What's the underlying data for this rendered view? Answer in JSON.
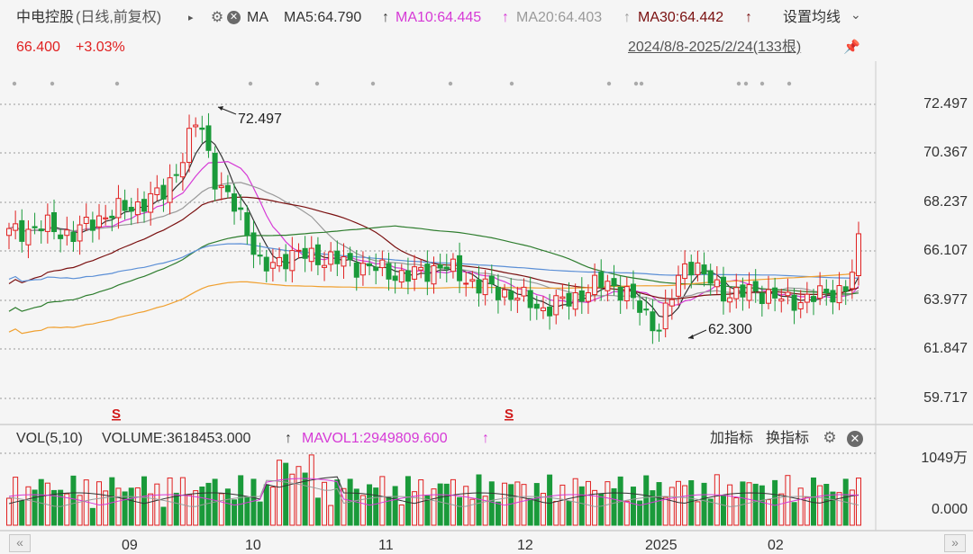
{
  "header": {
    "stock": "中电控股",
    "mode": "(日线,前复权)",
    "arrow": "▸",
    "ma_label": "MA",
    "ma5": "MA5:64.790",
    "ma10": "MA10:64.445",
    "ma20": "MA20:64.403",
    "ma30": "MA30:64.442",
    "up_arrow": "↑",
    "settings": "设置均线",
    "settings_caret": "⌄",
    "price": "66.400",
    "change": "+3.03%",
    "range": "2024/8/8-2025/2/24(133根)"
  },
  "price_axis": [
    "72.497",
    "70.367",
    "68.237",
    "66.107",
    "63.977",
    "61.847",
    "59.717"
  ],
  "annotations": {
    "high": "72.497",
    "low": "62.300"
  },
  "signal_mark": "S",
  "volume": {
    "title": "VOL(5,10)",
    "volume_label": "VOLUME:3618453.000",
    "mavol": "MAVOL1:2949809.600",
    "arrow": "↑",
    "add_indicator": "加指标",
    "switch_indicator": "换指标",
    "axis_top": "1049万",
    "axis_bottom": "0.000"
  },
  "x_axis": [
    "09",
    "10",
    "11",
    "12",
    "2025",
    "02"
  ],
  "colors": {
    "up": "#e02020",
    "down": "#1a9a3a",
    "ma5": "#333333",
    "ma10": "#d63ad6",
    "ma20": "#9a9a9a",
    "ma30": "#7a1010"
  },
  "icons": {
    "gear": "gear-icon",
    "close": "close-icon",
    "pin": "pin-icon"
  }
}
